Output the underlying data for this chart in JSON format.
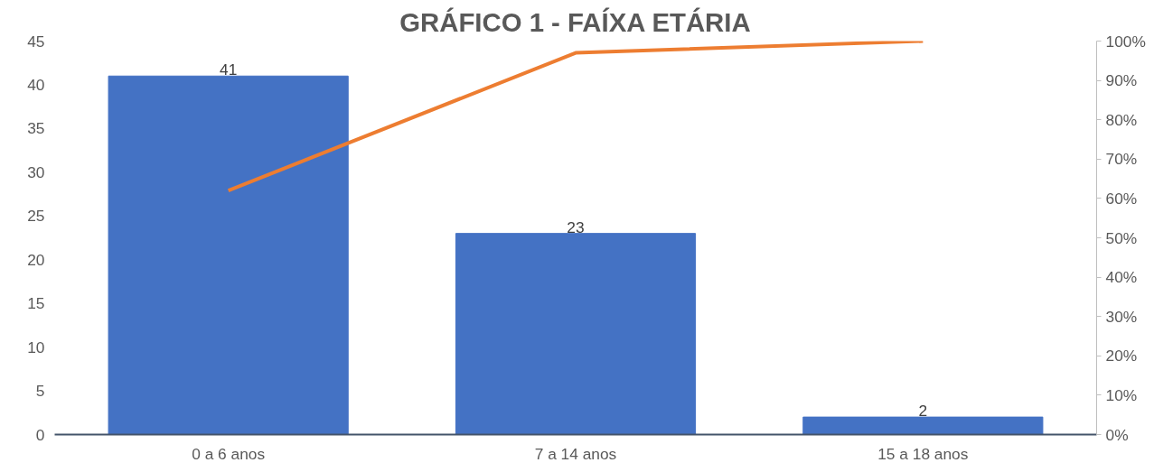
{
  "chart_data": {
    "type": "bar",
    "title": "GRÁFICO 1 - FAÍXA ETÁRIA",
    "categories": [
      "0 a 6 anos",
      "7 a 14 anos",
      "15 a 18 anos"
    ],
    "series": [
      {
        "color": "#4472c4",
        "values": [
          41,
          23,
          2
        ],
        "value_labels": [
          "41",
          "23",
          "2"
        ]
      },
      {
        "type": "line",
        "axis": "y2",
        "color": "#ed7d31",
        "values": [
          62,
          97,
          100
        ]
      }
    ],
    "ylim": [
      0,
      45
    ],
    "yticks": [
      0,
      5,
      10,
      15,
      20,
      25,
      30,
      35,
      40,
      45
    ],
    "y2lim": [
      0,
      100
    ],
    "y2ticks": [
      {
        "value": 0,
        "label": "0%"
      },
      {
        "value": 10,
        "label": "10%"
      },
      {
        "value": 20,
        "label": "20%"
      },
      {
        "value": 30,
        "label": "30%"
      },
      {
        "value": 40,
        "label": "40%"
      },
      {
        "value": 50,
        "label": "50%"
      },
      {
        "value": 60,
        "label": "60%"
      },
      {
        "value": 70,
        "label": "70%"
      },
      {
        "value": 80,
        "label": "80%"
      },
      {
        "value": 90,
        "label": "90%"
      },
      {
        "value": 100,
        "label": "100%"
      }
    ],
    "grid": false,
    "marker": "none",
    "line_style": "solid"
  }
}
